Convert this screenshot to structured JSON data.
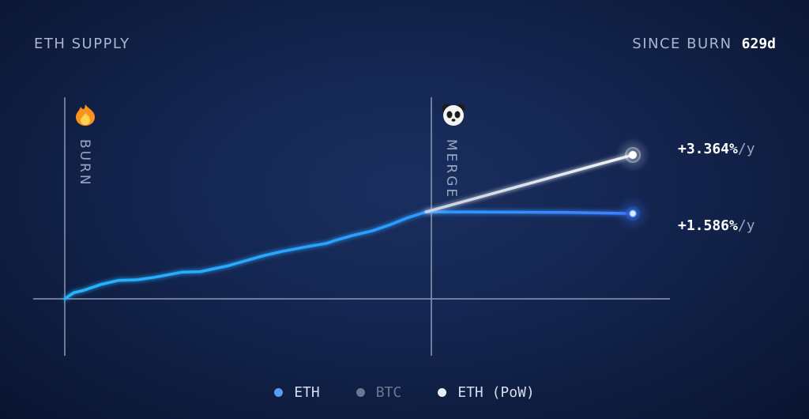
{
  "header": {
    "title": "ETH SUPPLY",
    "since_label": "SINCE BURN",
    "since_value": "629d"
  },
  "markers": {
    "burn": {
      "label": "BURN",
      "icon": "fire-icon"
    },
    "merge": {
      "label": "MERGE",
      "icon": "panda-icon"
    }
  },
  "annotations": {
    "pow_rate": "+3.364%",
    "eth_rate": "+1.586%",
    "unit": "/y"
  },
  "legend": [
    {
      "label": "ETH",
      "color": "#5b9cf0",
      "active": true
    },
    {
      "label": "BTC",
      "color": "#6b7791",
      "active": false
    },
    {
      "label": "ETH (PoW)",
      "color": "#e9edf5",
      "active": true
    }
  ],
  "colors": {
    "eth_line": "#2ea8ff",
    "eth_line_end": "#3f7fff",
    "pow_line": "#e6eaf2",
    "axis": "#8c9ab6"
  },
  "chart_data": {
    "type": "line",
    "title": "ETH SUPPLY",
    "x_unit": "days since burn",
    "x_range": [
      0,
      629
    ],
    "markers": [
      {
        "label": "BURN",
        "x": 0
      },
      {
        "label": "MERGE",
        "x": 400
      }
    ],
    "series": [
      {
        "name": "ETH",
        "color": "#2ea8ff",
        "x": [
          0,
          10,
          20,
          40,
          60,
          80,
          100,
          130,
          150,
          180,
          200,
          220,
          240,
          270,
          290,
          300,
          320,
          340,
          360,
          380,
          400,
          450,
          500,
          560,
          629
        ],
        "y": [
          0,
          6,
          8,
          14,
          18,
          18.5,
          21,
          26,
          26.5,
          32,
          37,
          42,
          46,
          51,
          54,
          57,
          62,
          66,
          72,
          79,
          84.5,
          84.5,
          84.3,
          84,
          83
        ]
      },
      {
        "name": "ETH (PoW)",
        "color": "#e6eaf2",
        "x": [
          400,
          629
        ],
        "y": [
          84.5,
          140
        ]
      }
    ],
    "end_labels": [
      "+3.364%/y",
      "+1.586%/y"
    ]
  }
}
